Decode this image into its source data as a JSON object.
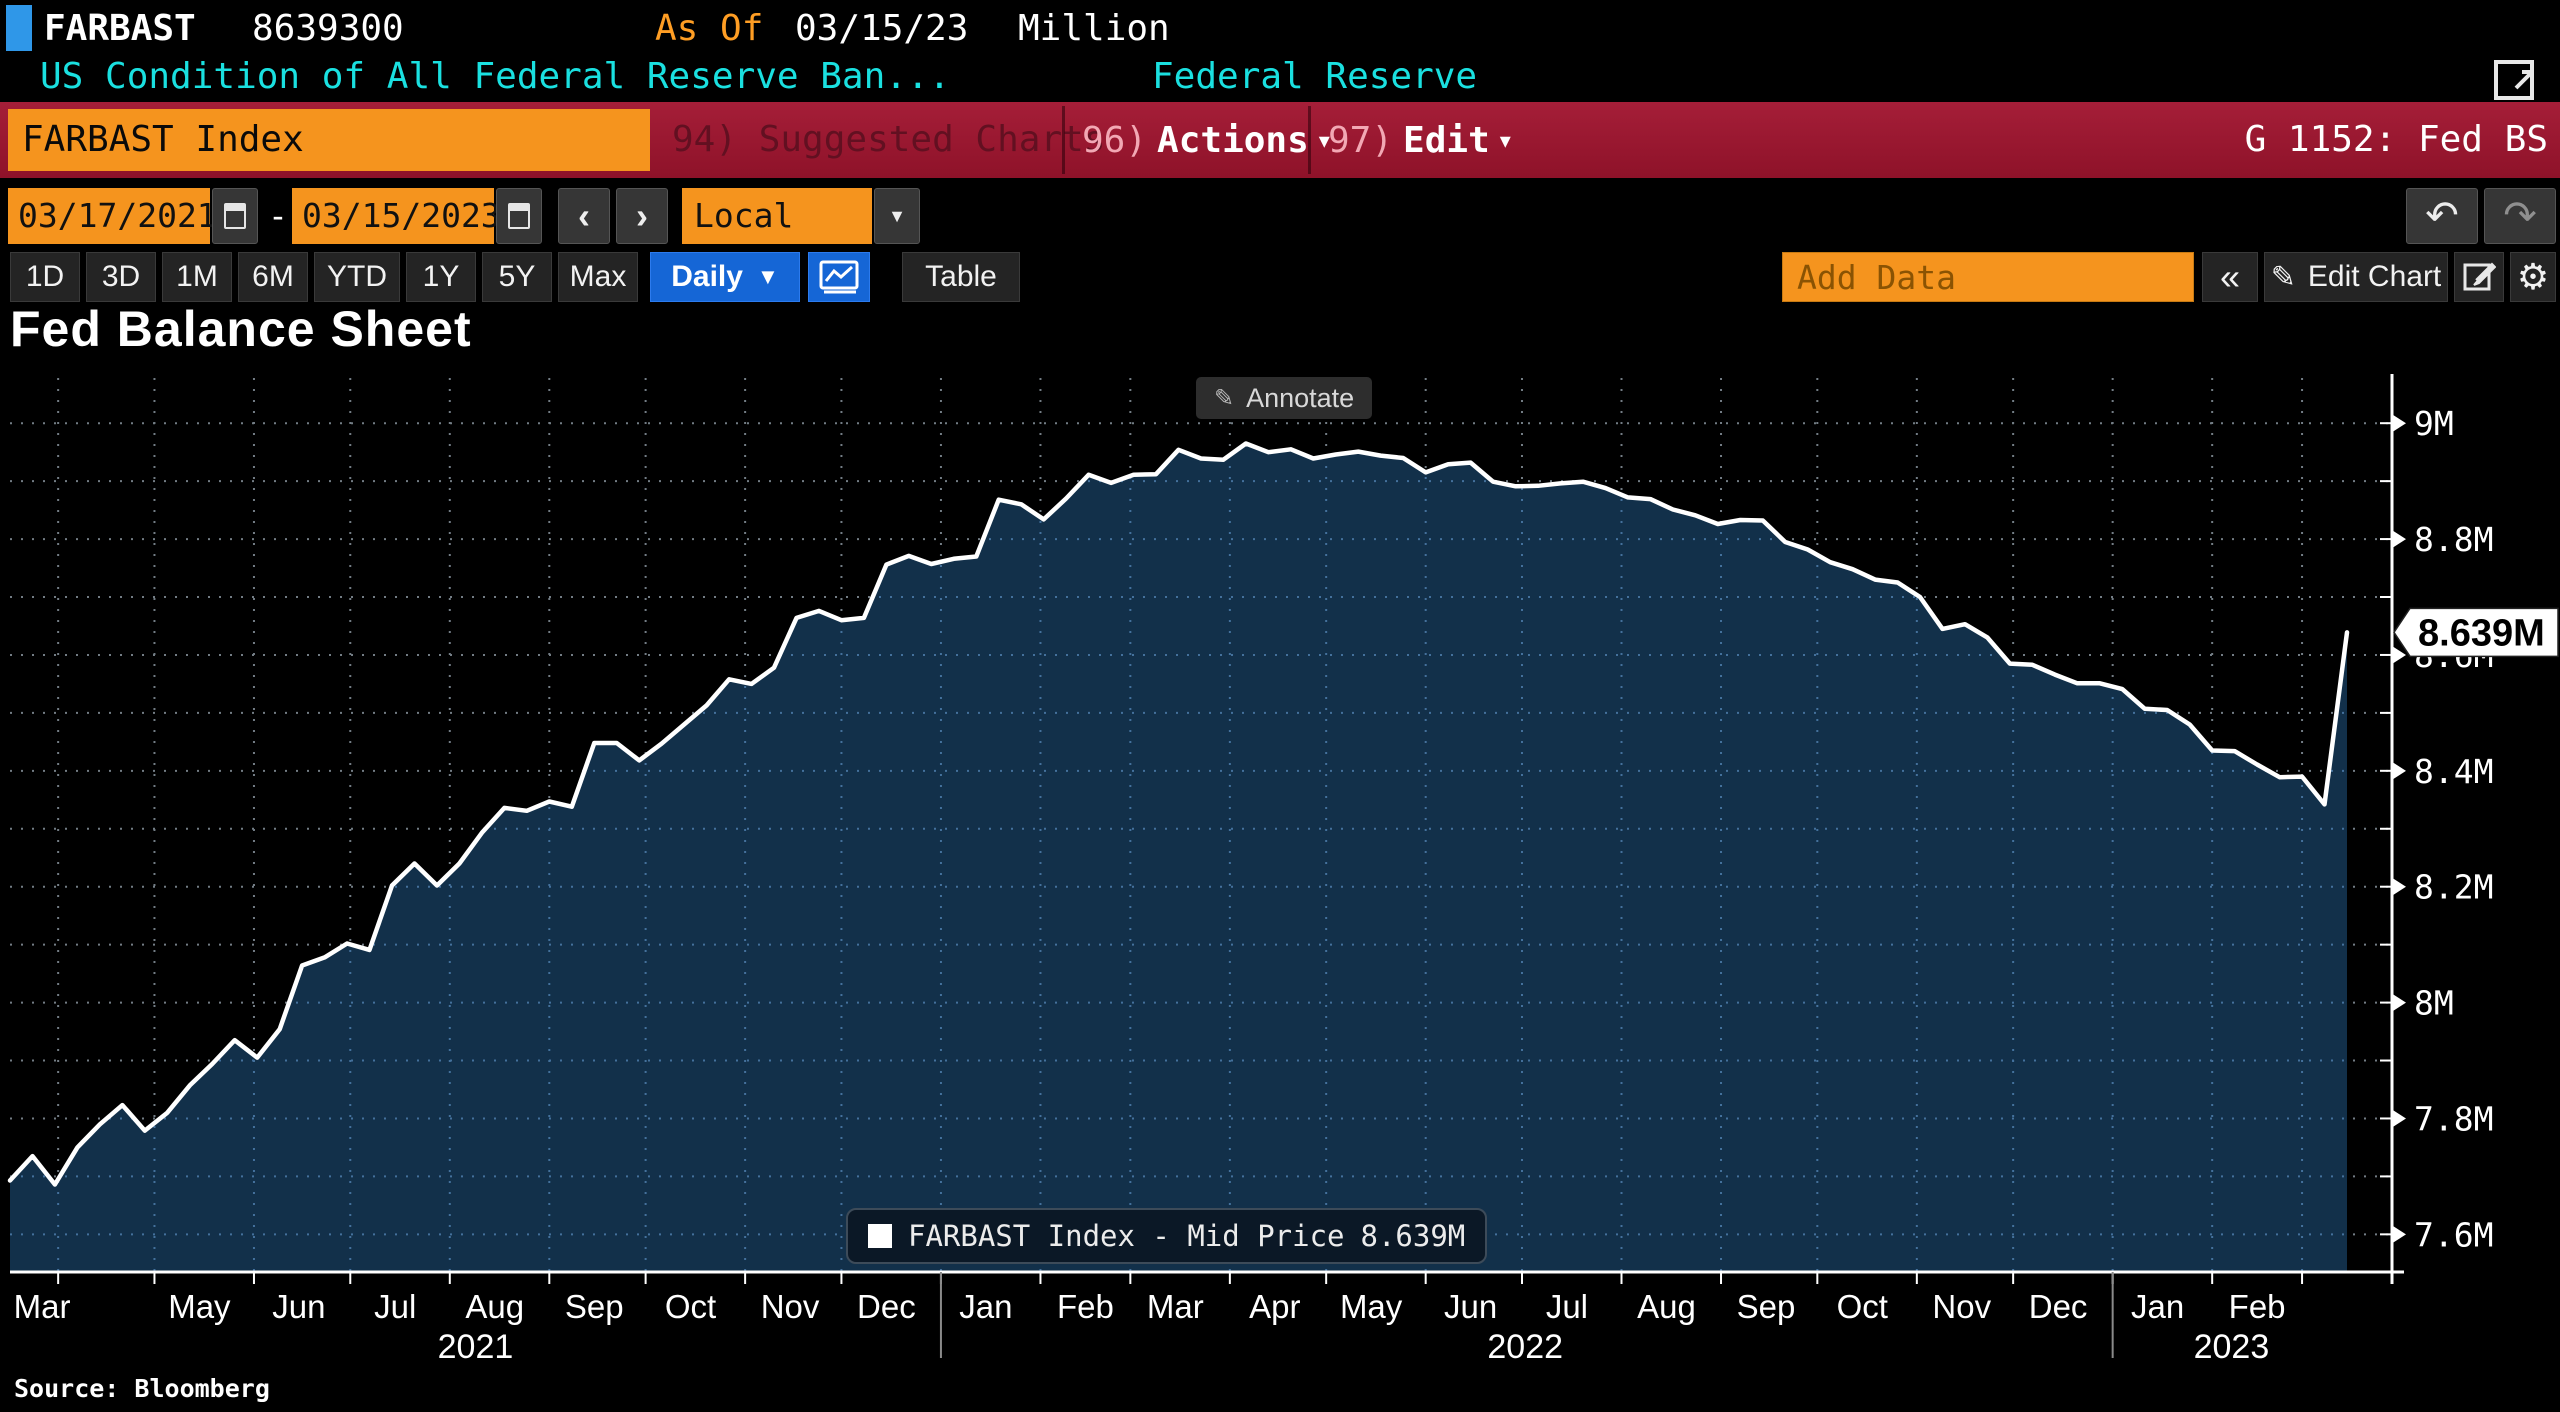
{
  "header": {
    "ticker": "FARBAST",
    "last_raw_value": "8639300",
    "as_of_label": "As Of",
    "as_of_date": "03/15/23",
    "unit": "Million",
    "description": "US Condition of All Federal Reserve Ban...",
    "data_source": "Federal Reserve"
  },
  "command_bar": {
    "security_field": "FARBAST Index",
    "suggested_charts": "94) Suggested Charts",
    "actions_num": "96)",
    "actions_label": "Actions",
    "edit_num": "97)",
    "edit_label": "Edit",
    "page_label": "G 1152: Fed BS"
  },
  "controls": {
    "date_from": "03/17/2021",
    "date_separator": "-",
    "date_to": "03/15/2023",
    "currency": "Local CCY",
    "ranges": [
      "1D",
      "3D",
      "1M",
      "6M",
      "YTD",
      "1Y",
      "5Y",
      "Max"
    ],
    "frequency": "Daily",
    "table_label": "Table",
    "add_data_placeholder": "Add Data",
    "edit_chart_label": "Edit Chart"
  },
  "icons": {
    "dropdown": "▼",
    "caret": "▾",
    "chev_left": "‹",
    "chev_right": "›",
    "collapse": "«",
    "pencil": "✎",
    "undo": "↶",
    "redo": "↷",
    "gear": "⚙"
  },
  "chart": {
    "title": "Fed Balance Sheet",
    "annotate_label": "Annotate",
    "legend_name": "FARBAST Index - Mid Price",
    "legend_value": "8.639M",
    "source": "Source:  Bloomberg"
  },
  "chart_data": {
    "type": "area",
    "title": "Fed Balance Sheet",
    "span_days": 728,
    "ylim": [
      7.535,
      9.078
    ],
    "y_minor_step": 0.1,
    "y_ticks": [
      {
        "value": 7.6,
        "label": "7.6M"
      },
      {
        "value": 7.8,
        "label": "7.8M"
      },
      {
        "value": 8.0,
        "label": "8M"
      },
      {
        "value": 8.2,
        "label": "8.2M"
      },
      {
        "value": 8.4,
        "label": "8.4M"
      },
      {
        "value": 8.6,
        "label": "8.6M"
      },
      {
        "value": 8.8,
        "label": "8.8M"
      },
      {
        "value": 9.0,
        "label": "9M"
      }
    ],
    "x_labels": [
      {
        "label": "Mar",
        "day": 10
      },
      {
        "label": "May",
        "day": 59
      },
      {
        "label": "Jun",
        "day": 90
      },
      {
        "label": "Jul",
        "day": 120
      },
      {
        "label": "Aug",
        "day": 151
      },
      {
        "label": "Sep",
        "day": 182
      },
      {
        "label": "Oct",
        "day": 212
      },
      {
        "label": "Nov",
        "day": 243
      },
      {
        "label": "Dec",
        "day": 273
      },
      {
        "label": "Jan",
        "day": 304
      },
      {
        "label": "Feb",
        "day": 335
      },
      {
        "label": "Mar",
        "day": 363
      },
      {
        "label": "Apr",
        "day": 394
      },
      {
        "label": "May",
        "day": 424
      },
      {
        "label": "Jun",
        "day": 455
      },
      {
        "label": "Jul",
        "day": 485
      },
      {
        "label": "Aug",
        "day": 516
      },
      {
        "label": "Sep",
        "day": 547
      },
      {
        "label": "Oct",
        "day": 577
      },
      {
        "label": "Nov",
        "day": 608
      },
      {
        "label": "Dec",
        "day": 638
      },
      {
        "label": "Jan",
        "day": 669
      },
      {
        "label": "Feb",
        "day": 700
      }
    ],
    "year_labels": [
      {
        "label": "2021",
        "day": 145
      },
      {
        "label": "2022",
        "day": 472
      },
      {
        "label": "2023",
        "day": 692
      }
    ],
    "year_divider_days": [
      290,
      655
    ],
    "last_value": 8.639,
    "last_value_label": "8.639M",
    "series": [
      {
        "name": "FARBAST Index - Mid Price",
        "frequency": "weekly",
        "start_date": "2021-03-17",
        "end_date": "2023-03-15",
        "values": [
          7.693,
          7.735,
          7.686,
          7.75,
          7.79,
          7.823,
          7.779,
          7.81,
          7.857,
          7.894,
          7.935,
          7.905,
          7.954,
          8.064,
          8.078,
          8.102,
          8.091,
          8.202,
          8.24,
          8.202,
          8.24,
          8.293,
          8.336,
          8.331,
          8.347,
          8.338,
          8.448,
          8.448,
          8.418,
          8.447,
          8.48,
          8.513,
          8.558,
          8.55,
          8.578,
          8.664,
          8.676,
          8.66,
          8.664,
          8.756,
          8.771,
          8.757,
          8.766,
          8.77,
          8.868,
          8.86,
          8.834,
          8.87,
          8.911,
          8.897,
          8.911,
          8.912,
          8.954,
          8.939,
          8.937,
          8.965,
          8.95,
          8.955,
          8.939,
          8.946,
          8.951,
          8.944,
          8.94,
          8.915,
          8.929,
          8.932,
          8.899,
          8.891,
          8.892,
          8.896,
          8.899,
          8.888,
          8.872,
          8.869,
          8.851,
          8.841,
          8.826,
          8.833,
          8.832,
          8.795,
          8.782,
          8.76,
          8.748,
          8.73,
          8.725,
          8.7,
          8.645,
          8.653,
          8.63,
          8.585,
          8.583,
          8.566,
          8.551,
          8.551,
          8.541,
          8.507,
          8.505,
          8.48,
          8.435,
          8.434,
          8.411,
          8.389,
          8.39,
          8.342,
          8.639
        ]
      }
    ]
  },
  "colors": {
    "accent_orange": "#f5941e",
    "command_bar_red": "#9d1a33",
    "button_blue": "#1566d6",
    "description_cyan": "#1ae0e0",
    "area_fill": "#12304a",
    "line": "#ffffff",
    "marker_blue": "#2f97e8"
  }
}
